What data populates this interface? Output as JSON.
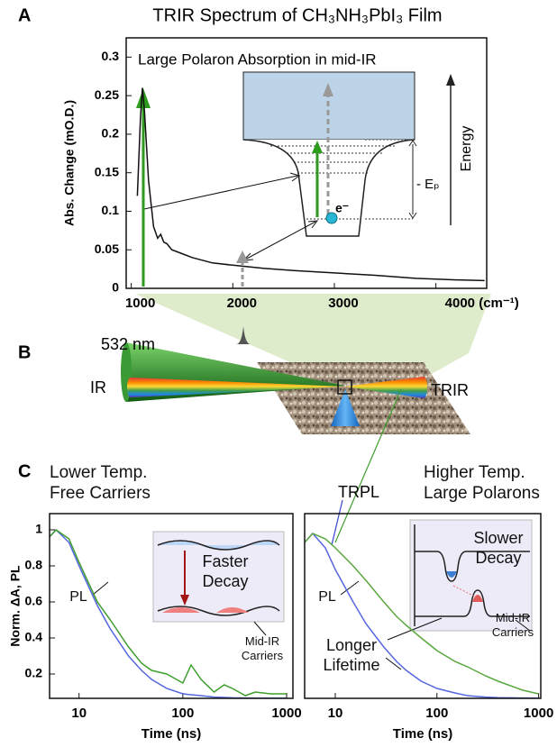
{
  "panels": {
    "labels": [
      "A",
      "B",
      "C"
    ],
    "laser": "532 nm",
    "probe": "IR",
    "trir": "TRIR",
    "trpl": "TRPL"
  },
  "chart_data": [
    {
      "type": "line",
      "title": "TRIR Spectrum of CH₃NH₃PbI₃ Film",
      "annotations": [
        "Large Polaron Absorption in mid-IR",
        "Energy",
        "- Eₚ",
        "e⁻"
      ],
      "ylabel": "Abs. Change (mO.D.)",
      "x": [
        1060,
        1090,
        1110,
        1130,
        1170,
        1220,
        1260,
        1290,
        1320,
        1350,
        1400,
        1500,
        1600,
        1800,
        2000,
        2300,
        2600,
        3000,
        3400,
        3800,
        4200,
        4480
      ],
      "values": [
        0.12,
        0.22,
        0.26,
        0.23,
        0.14,
        0.08,
        0.065,
        0.07,
        0.06,
        0.058,
        0.05,
        0.045,
        0.04,
        0.033,
        0.03,
        0.026,
        0.023,
        0.02,
        0.017,
        0.013,
        0.011,
        0.01
      ],
      "color": "#111111",
      "xlim": [
        950,
        4500
      ],
      "ylim": [
        0,
        0.325
      ],
      "xticks": [
        1000,
        2000,
        3000,
        {
          "value": 4000,
          "label": "4000 (cm⁻¹)"
        }
      ],
      "yticks": [
        0,
        0.05,
        0.1,
        0.15,
        0.2,
        0.25,
        0.3
      ]
    },
    {
      "type": "line",
      "title": "Lower Temp.",
      "subtitle": "Free Carriers",
      "annotations": [
        "Faster Decay"
      ],
      "ylabel": "Norm. ΔA, PL",
      "xlabel": "Time (ns)",
      "xscale": "log",
      "x": [
        5,
        6,
        8,
        10,
        15,
        20,
        30,
        40,
        50,
        70,
        100,
        120,
        150,
        200,
        250,
        300,
        400,
        500,
        700,
        1000
      ],
      "series": [
        {
          "name": "PL",
          "color": "#5566e0",
          "values": [
            0.95,
            1,
            0.93,
            0.8,
            0.58,
            0.45,
            0.3,
            0.22,
            0.17,
            0.12,
            0.09,
            0.085,
            0.08,
            0.072,
            0.07,
            0.068,
            0.067,
            0.066,
            0.066,
            0.066
          ]
        },
        {
          "name": "Mid-IR Carriers",
          "color": "#3f9e2f",
          "values": [
            0.95,
            1,
            0.95,
            0.82,
            0.6,
            0.5,
            0.35,
            0.26,
            0.22,
            0.2,
            0.15,
            0.25,
            0.17,
            0.1,
            0.14,
            0.12,
            0.08,
            0.1,
            0.09,
            0.09
          ]
        }
      ],
      "xlim": [
        5.2,
        1150
      ],
      "ylim": [
        0.065,
        1.09
      ],
      "xticks": [
        10,
        100,
        1000
      ],
      "yticks": [
        0.2,
        0.4,
        0.6,
        0.8,
        1
      ]
    },
    {
      "type": "line",
      "title": "Higher Temp.",
      "subtitle": "Large Polarons",
      "annotations": [
        "Slower Decay",
        "Longer Lifetime"
      ],
      "xlabel": "Time (ns)",
      "xscale": "log",
      "x": [
        5,
        6,
        8,
        10,
        15,
        20,
        30,
        40,
        50,
        70,
        100,
        150,
        200,
        300,
        400,
        500,
        700,
        1000
      ],
      "series": [
        {
          "name": "PL",
          "color": "#5566e0",
          "values": [
            0.93,
            0.98,
            0.9,
            0.78,
            0.6,
            0.48,
            0.35,
            0.27,
            0.22,
            0.16,
            0.12,
            0.095,
            0.08,
            0.072,
            0.069,
            0.068,
            0.067,
            0.066
          ]
        },
        {
          "name": "Mid-IR Carriers",
          "color": "#5aa83e",
          "values": [
            0.93,
            0.98,
            0.95,
            0.9,
            0.8,
            0.72,
            0.6,
            0.52,
            0.47,
            0.4,
            0.33,
            0.27,
            0.24,
            0.19,
            0.16,
            0.14,
            0.11,
            0.09
          ]
        }
      ],
      "xlim": [
        5,
        1050
      ],
      "ylim": [
        0.065,
        1.09
      ],
      "xticks": [
        10,
        100,
        1000
      ]
    }
  ]
}
